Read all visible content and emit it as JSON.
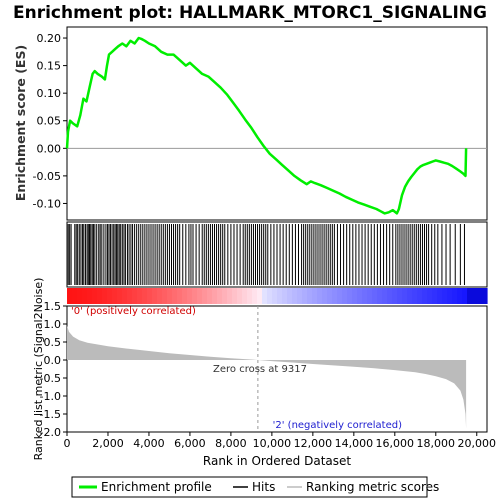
{
  "chart_data": {
    "type": "line",
    "title": "Enrichment plot: HALLMARK_MTORC1_SIGNALING",
    "es_panel": {
      "ylabel": "Enrichment score (ES)",
      "ylim": [
        -0.13,
        0.22
      ],
      "yticks": [
        -0.1,
        -0.05,
        0.0,
        0.05,
        0.1,
        0.15,
        0.2
      ],
      "ytick_labels": [
        "-0.10",
        "-0.05",
        "0.00",
        "0.05",
        "0.10",
        "0.15",
        "0.20"
      ],
      "color": "#00ee00",
      "x": [
        0,
        50,
        150,
        300,
        500,
        650,
        800,
        950,
        1100,
        1250,
        1350,
        1500,
        1700,
        1850,
        1950,
        2050,
        2200,
        2350,
        2500,
        2700,
        2900,
        3100,
        3300,
        3500,
        3650,
        3800,
        4000,
        4300,
        4600,
        4900,
        5200,
        5500,
        5800,
        6000,
        6300,
        6600,
        6900,
        7200,
        7500,
        7800,
        8100,
        8400,
        8700,
        9000,
        9300,
        9600,
        9900,
        10200,
        10500,
        10800,
        11100,
        11400,
        11700,
        11900,
        12100,
        12400,
        12700,
        13000,
        13300,
        13600,
        13900,
        14200,
        14500,
        14800,
        15100,
        15300,
        15500,
        15700,
        15900,
        16100,
        16200,
        16350,
        16500,
        16650,
        16800,
        16950,
        17100,
        17250,
        17400,
        17550,
        17700,
        17850,
        18000,
        18200,
        18400,
        18600,
        18800,
        19000,
        19200,
        19350,
        19450,
        19480
      ],
      "y": [
        0.0,
        0.03,
        0.05,
        0.045,
        0.04,
        0.06,
        0.09,
        0.085,
        0.11,
        0.135,
        0.14,
        0.135,
        0.13,
        0.125,
        0.15,
        0.17,
        0.175,
        0.18,
        0.185,
        0.19,
        0.185,
        0.195,
        0.19,
        0.2,
        0.198,
        0.195,
        0.19,
        0.185,
        0.175,
        0.17,
        0.17,
        0.16,
        0.15,
        0.155,
        0.145,
        0.135,
        0.13,
        0.12,
        0.11,
        0.098,
        0.083,
        0.068,
        0.052,
        0.037,
        0.02,
        0.004,
        -0.01,
        -0.02,
        -0.03,
        -0.04,
        -0.05,
        -0.058,
        -0.065,
        -0.06,
        -0.063,
        -0.067,
        -0.072,
        -0.077,
        -0.082,
        -0.088,
        -0.093,
        -0.098,
        -0.102,
        -0.106,
        -0.11,
        -0.114,
        -0.118,
        -0.116,
        -0.112,
        -0.118,
        -0.11,
        -0.085,
        -0.07,
        -0.06,
        -0.052,
        -0.045,
        -0.038,
        -0.033,
        -0.03,
        -0.028,
        -0.026,
        -0.024,
        -0.022,
        -0.024,
        -0.026,
        -0.028,
        -0.032,
        -0.037,
        -0.042,
        -0.046,
        -0.05,
        0.0
      ]
    },
    "hits_x": [
      60,
      130,
      200,
      380,
      450,
      520,
      600,
      680,
      760,
      820,
      900,
      980,
      1040,
      1100,
      1160,
      1230,
      1290,
      1360,
      1450,
      1550,
      1620,
      1700,
      1800,
      1900,
      1980,
      2050,
      2120,
      2200,
      2280,
      2350,
      2420,
      2480,
      2550,
      2620,
      2700,
      2780,
      2850,
      2950,
      3030,
      3120,
      3200,
      3300,
      3400,
      3500,
      3600,
      3700,
      3800,
      3900,
      4000,
      4100,
      4200,
      4300,
      4400,
      4500,
      4600,
      4700,
      4800,
      4900,
      5000,
      5100,
      5200,
      5300,
      5400,
      5500,
      5650,
      5800,
      5950,
      6050,
      6150,
      6300,
      6450,
      6600,
      6700,
      6800,
      6900,
      7000,
      7100,
      7200,
      7300,
      7400,
      7500,
      7600,
      7700,
      7850,
      8000,
      8150,
      8300,
      8450,
      8600,
      8700,
      8800,
      8900,
      9000,
      9100,
      9200,
      9300,
      9400,
      9500,
      9600,
      9700,
      9800,
      9950,
      10100,
      10250,
      10400,
      10550,
      10700,
      10850,
      11000,
      11150,
      11300,
      11450,
      11550,
      11650,
      11750,
      11850,
      11950,
      12050,
      12150,
      12250,
      12350,
      12450,
      12550,
      12650,
      12750,
      12850,
      12950,
      13050,
      13200,
      13350,
      13500,
      13650,
      13800,
      13950,
      14100,
      14250,
      14400,
      14550,
      14700,
      14850,
      15000,
      15150,
      15300,
      15450,
      15600,
      15750,
      15900,
      16050,
      16150,
      16250,
      16350,
      16450,
      16550,
      16650,
      16750,
      16850,
      16950,
      17050,
      17150,
      17250,
      17350,
      17450,
      17550,
      17650,
      17800,
      17950,
      18100,
      18300,
      18500,
      18700,
      18950,
      19200,
      19400
    ],
    "rank_panel": {
      "ylabel": "Ranked list metric (Signal2Noise)",
      "ylim": [
        -2.0,
        1.5
      ],
      "yticks": [
        -2.0,
        -1.5,
        -1.0,
        -0.5,
        0.0,
        0.5,
        1.0,
        1.5
      ],
      "ytick_labels": [
        "-2.0",
        "-1.5",
        "-1.0",
        "-0.5",
        "0.0",
        "0.5",
        "1.0",
        "1.5"
      ],
      "x": [
        0,
        100,
        300,
        600,
        1000,
        2000,
        3000,
        4000,
        5000,
        6000,
        7000,
        8000,
        9317,
        10000,
        11000,
        12000,
        13000,
        14000,
        15000,
        16000,
        17000,
        17500,
        18000,
        18500,
        18900,
        19200,
        19350,
        19450,
        19480
      ],
      "y": [
        0.95,
        0.78,
        0.65,
        0.55,
        0.48,
        0.38,
        0.31,
        0.25,
        0.19,
        0.14,
        0.09,
        0.05,
        0.0,
        -0.03,
        -0.07,
        -0.11,
        -0.15,
        -0.19,
        -0.23,
        -0.28,
        -0.34,
        -0.39,
        -0.45,
        -0.53,
        -0.65,
        -0.85,
        -1.1,
        -1.5,
        -1.9
      ]
    },
    "xlabel": "Rank in Ordered Dataset",
    "xlim": [
      0,
      20500
    ],
    "xticks": [
      0,
      2000,
      4000,
      6000,
      8000,
      10000,
      12000,
      14000,
      16000,
      18000,
      20000
    ],
    "xtick_labels": [
      "0",
      "2,000",
      "4,000",
      "6,000",
      "8,000",
      "10,000",
      "12,000",
      "14,000",
      "16,000",
      "18,000",
      "20,000"
    ],
    "zero_cross": 9317,
    "zero_cross_label": "Zero cross at 9317",
    "pos_label": "'0' (positively correlated)",
    "neg_label": "'2' (negatively correlated)",
    "legend": [
      "Enrichment profile",
      "Hits",
      "Ranking metric scores"
    ],
    "colors": {
      "es": "#00ee00",
      "hits": "#000000",
      "metric": "#bbbbbb",
      "pos": "#ff0000",
      "neg": "#0000ff"
    }
  }
}
